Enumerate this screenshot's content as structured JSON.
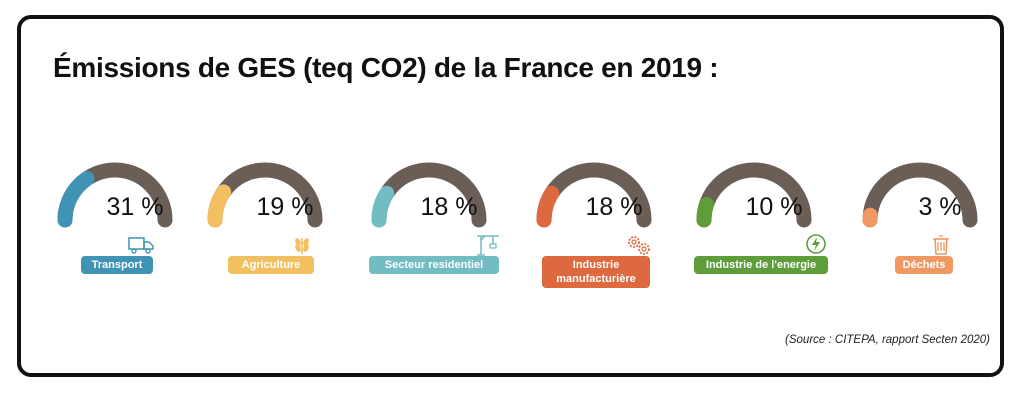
{
  "title": "Émissions de GES (teq CO2) de la France en 2019 :",
  "source": "(Source : CITEPA, rapport Secten 2020)",
  "colors": {
    "track": "#6a5e57",
    "background": "#ffffff",
    "text": "#111111"
  },
  "chart_data": {
    "type": "gauge",
    "unit": "%",
    "title": "Émissions de GES (teq CO2) de la France en 2019 :",
    "categories": [
      "Transport",
      "Agriculture",
      "Secteur residentiel",
      "Industrie manufacturière",
      "Industrie de l'energie",
      "Déchets"
    ],
    "values": [
      31,
      19,
      18,
      18,
      10,
      3
    ],
    "items": [
      {
        "label": "Transport",
        "value": 31,
        "display": "31 %",
        "color": "#3f93b4",
        "icon": "truck-icon"
      },
      {
        "label": "Agriculture",
        "value": 19,
        "display": "19 %",
        "color": "#f2c061",
        "icon": "wheat-icon"
      },
      {
        "label": "Secteur residentiel",
        "value": 18,
        "display": "18 %",
        "color": "#72bcc4",
        "icon": "crane-icon"
      },
      {
        "label": "Industrie\nmanufacturière",
        "value": 18,
        "display": "18 %",
        "color": "#de693f",
        "icon": "gears-icon"
      },
      {
        "label": "Industrie de l'energie",
        "value": 10,
        "display": "10 %",
        "color": "#5e9d3a",
        "icon": "lightning-icon"
      },
      {
        "label": "Déchets",
        "value": 3,
        "display": "3 %",
        "color": "#f09862",
        "icon": "trash-icon"
      }
    ]
  }
}
